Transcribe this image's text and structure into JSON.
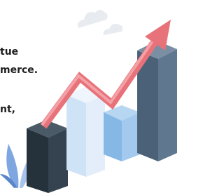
{
  "texts": [
    "tue",
    "merce.",
    "nt,"
  ]
}
